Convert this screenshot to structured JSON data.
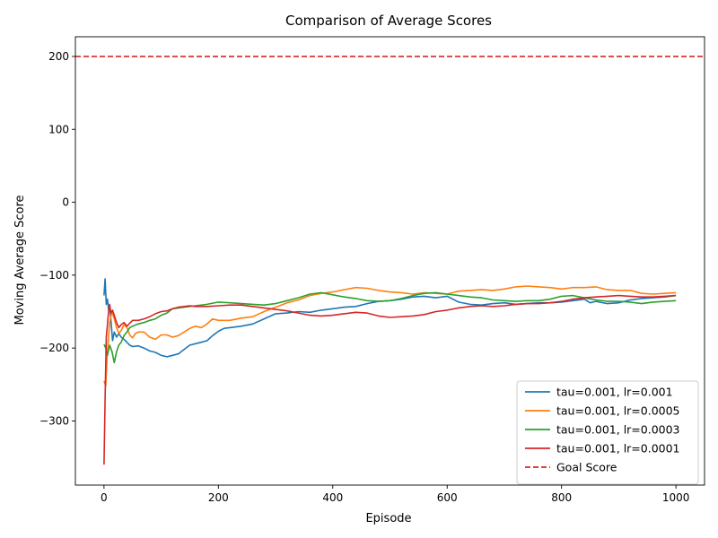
{
  "chart_data": {
    "type": "line",
    "title": "Comparison of Average Scores",
    "xlabel": "Episode",
    "ylabel": "Moving Average Score",
    "xlim": [
      -50,
      1050
    ],
    "ylim": [
      -388,
      227
    ],
    "xticks": [
      0,
      200,
      400,
      600,
      800,
      1000
    ],
    "yticks": [
      -300,
      -200,
      -100,
      0,
      100,
      200
    ],
    "grid": false,
    "legend_position": "lower-right",
    "goal": {
      "name": "Goal Score",
      "value": 200,
      "color": "#d62728",
      "style": "dashed"
    },
    "series": [
      {
        "name": "tau=0.001, lr=0.001",
        "color": "#1f77b4",
        "points": [
          [
            0,
            -128
          ],
          [
            2,
            -105
          ],
          [
            4,
            -140
          ],
          [
            6,
            -133
          ],
          [
            8,
            -148
          ],
          [
            10,
            -142
          ],
          [
            12,
            -160
          ],
          [
            15,
            -190
          ],
          [
            18,
            -178
          ],
          [
            22,
            -185
          ],
          [
            26,
            -180
          ],
          [
            30,
            -185
          ],
          [
            35,
            -188
          ],
          [
            40,
            -192
          ],
          [
            45,
            -196
          ],
          [
            50,
            -198
          ],
          [
            60,
            -197
          ],
          [
            70,
            -200
          ],
          [
            80,
            -204
          ],
          [
            90,
            -206
          ],
          [
            100,
            -210
          ],
          [
            110,
            -212
          ],
          [
            120,
            -210
          ],
          [
            130,
            -208
          ],
          [
            140,
            -202
          ],
          [
            150,
            -196
          ],
          [
            160,
            -194
          ],
          [
            170,
            -192
          ],
          [
            180,
            -190
          ],
          [
            190,
            -183
          ],
          [
            200,
            -177
          ],
          [
            210,
            -173
          ],
          [
            220,
            -172
          ],
          [
            240,
            -170
          ],
          [
            260,
            -167
          ],
          [
            280,
            -160
          ],
          [
            300,
            -153
          ],
          [
            320,
            -152
          ],
          [
            340,
            -150
          ],
          [
            360,
            -151
          ],
          [
            380,
            -148
          ],
          [
            400,
            -146
          ],
          [
            420,
            -144
          ],
          [
            440,
            -143
          ],
          [
            460,
            -139
          ],
          [
            480,
            -136
          ],
          [
            500,
            -135
          ],
          [
            520,
            -133
          ],
          [
            540,
            -130
          ],
          [
            560,
            -129
          ],
          [
            580,
            -131
          ],
          [
            600,
            -129
          ],
          [
            620,
            -137
          ],
          [
            640,
            -140
          ],
          [
            660,
            -141
          ],
          [
            680,
            -139
          ],
          [
            700,
            -138
          ],
          [
            720,
            -140
          ],
          [
            740,
            -139
          ],
          [
            760,
            -138
          ],
          [
            780,
            -138
          ],
          [
            800,
            -137
          ],
          [
            820,
            -135
          ],
          [
            840,
            -133
          ],
          [
            850,
            -138
          ],
          [
            860,
            -136
          ],
          [
            880,
            -139
          ],
          [
            900,
            -138
          ],
          [
            920,
            -134
          ],
          [
            940,
            -132
          ],
          [
            960,
            -131
          ],
          [
            980,
            -130
          ],
          [
            1000,
            -128
          ]
        ]
      },
      {
        "name": "tau=0.001, lr=0.0005",
        "color": "#ff7f0e",
        "points": [
          [
            0,
            -245
          ],
          [
            3,
            -252
          ],
          [
            6,
            -205
          ],
          [
            10,
            -165
          ],
          [
            14,
            -150
          ],
          [
            18,
            -160
          ],
          [
            22,
            -172
          ],
          [
            26,
            -180
          ],
          [
            30,
            -176
          ],
          [
            35,
            -168
          ],
          [
            40,
            -172
          ],
          [
            45,
            -182
          ],
          [
            50,
            -186
          ],
          [
            55,
            -180
          ],
          [
            60,
            -178
          ],
          [
            70,
            -178
          ],
          [
            80,
            -185
          ],
          [
            90,
            -188
          ],
          [
            100,
            -182
          ],
          [
            110,
            -182
          ],
          [
            120,
            -185
          ],
          [
            130,
            -183
          ],
          [
            140,
            -178
          ],
          [
            150,
            -173
          ],
          [
            160,
            -170
          ],
          [
            170,
            -172
          ],
          [
            180,
            -167
          ],
          [
            190,
            -160
          ],
          [
            200,
            -162
          ],
          [
            220,
            -162
          ],
          [
            240,
            -159
          ],
          [
            260,
            -157
          ],
          [
            280,
            -150
          ],
          [
            300,
            -144
          ],
          [
            320,
            -138
          ],
          [
            340,
            -134
          ],
          [
            360,
            -128
          ],
          [
            380,
            -125
          ],
          [
            400,
            -123
          ],
          [
            420,
            -120
          ],
          [
            440,
            -117
          ],
          [
            460,
            -118
          ],
          [
            480,
            -121
          ],
          [
            500,
            -123
          ],
          [
            520,
            -124
          ],
          [
            540,
            -126
          ],
          [
            560,
            -124
          ],
          [
            580,
            -125
          ],
          [
            600,
            -126
          ],
          [
            620,
            -122
          ],
          [
            640,
            -121
          ],
          [
            660,
            -120
          ],
          [
            680,
            -121
          ],
          [
            700,
            -119
          ],
          [
            720,
            -116
          ],
          [
            740,
            -115
          ],
          [
            760,
            -116
          ],
          [
            780,
            -117
          ],
          [
            800,
            -119
          ],
          [
            820,
            -117
          ],
          [
            840,
            -117
          ],
          [
            860,
            -116
          ],
          [
            880,
            -120
          ],
          [
            900,
            -121
          ],
          [
            920,
            -121
          ],
          [
            940,
            -125
          ],
          [
            960,
            -126
          ],
          [
            980,
            -125
          ],
          [
            1000,
            -124
          ]
        ]
      },
      {
        "name": "tau=0.001, lr=0.0003",
        "color": "#2ca02c",
        "points": [
          [
            0,
            -195
          ],
          [
            3,
            -200
          ],
          [
            6,
            -210
          ],
          [
            10,
            -196
          ],
          [
            14,
            -205
          ],
          [
            18,
            -220
          ],
          [
            22,
            -205
          ],
          [
            26,
            -196
          ],
          [
            30,
            -192
          ],
          [
            35,
            -183
          ],
          [
            40,
            -178
          ],
          [
            45,
            -172
          ],
          [
            50,
            -170
          ],
          [
            60,
            -167
          ],
          [
            70,
            -165
          ],
          [
            80,
            -162
          ],
          [
            90,
            -160
          ],
          [
            100,
            -155
          ],
          [
            110,
            -152
          ],
          [
            120,
            -146
          ],
          [
            130,
            -145
          ],
          [
            140,
            -144
          ],
          [
            160,
            -142
          ],
          [
            180,
            -140
          ],
          [
            200,
            -137
          ],
          [
            220,
            -138
          ],
          [
            240,
            -139
          ],
          [
            260,
            -140
          ],
          [
            280,
            -141
          ],
          [
            300,
            -139
          ],
          [
            320,
            -135
          ],
          [
            340,
            -131
          ],
          [
            360,
            -126
          ],
          [
            380,
            -124
          ],
          [
            400,
            -127
          ],
          [
            420,
            -130
          ],
          [
            440,
            -132
          ],
          [
            460,
            -135
          ],
          [
            480,
            -136
          ],
          [
            500,
            -135
          ],
          [
            520,
            -132
          ],
          [
            540,
            -128
          ],
          [
            560,
            -125
          ],
          [
            580,
            -124
          ],
          [
            600,
            -126
          ],
          [
            620,
            -128
          ],
          [
            640,
            -130
          ],
          [
            660,
            -131
          ],
          [
            680,
            -134
          ],
          [
            700,
            -135
          ],
          [
            720,
            -136
          ],
          [
            740,
            -135
          ],
          [
            760,
            -135
          ],
          [
            780,
            -133
          ],
          [
            800,
            -129
          ],
          [
            820,
            -128
          ],
          [
            840,
            -131
          ],
          [
            860,
            -134
          ],
          [
            880,
            -136
          ],
          [
            900,
            -136
          ],
          [
            920,
            -137
          ],
          [
            940,
            -139
          ],
          [
            960,
            -137
          ],
          [
            980,
            -136
          ],
          [
            1000,
            -135
          ]
        ]
      },
      {
        "name": "tau=0.001, lr=0.0001",
        "color": "#d62728",
        "points": [
          [
            0,
            -360
          ],
          [
            2,
            -270
          ],
          [
            4,
            -185
          ],
          [
            6,
            -168
          ],
          [
            8,
            -150
          ],
          [
            10,
            -140
          ],
          [
            12,
            -152
          ],
          [
            15,
            -148
          ],
          [
            18,
            -155
          ],
          [
            22,
            -165
          ],
          [
            26,
            -172
          ],
          [
            30,
            -168
          ],
          [
            35,
            -165
          ],
          [
            40,
            -170
          ],
          [
            45,
            -166
          ],
          [
            50,
            -162
          ],
          [
            60,
            -162
          ],
          [
            70,
            -160
          ],
          [
            80,
            -157
          ],
          [
            90,
            -153
          ],
          [
            100,
            -150
          ],
          [
            110,
            -149
          ],
          [
            120,
            -146
          ],
          [
            130,
            -144
          ],
          [
            140,
            -143
          ],
          [
            150,
            -142
          ],
          [
            160,
            -143
          ],
          [
            180,
            -143
          ],
          [
            200,
            -142
          ],
          [
            220,
            -141
          ],
          [
            240,
            -141
          ],
          [
            260,
            -143
          ],
          [
            280,
            -145
          ],
          [
            300,
            -147
          ],
          [
            320,
            -149
          ],
          [
            340,
            -152
          ],
          [
            360,
            -155
          ],
          [
            380,
            -156
          ],
          [
            400,
            -155
          ],
          [
            420,
            -153
          ],
          [
            440,
            -151
          ],
          [
            460,
            -152
          ],
          [
            480,
            -156
          ],
          [
            500,
            -158
          ],
          [
            520,
            -157
          ],
          [
            540,
            -156
          ],
          [
            560,
            -154
          ],
          [
            580,
            -150
          ],
          [
            600,
            -148
          ],
          [
            620,
            -145
          ],
          [
            640,
            -143
          ],
          [
            660,
            -142
          ],
          [
            680,
            -143
          ],
          [
            700,
            -142
          ],
          [
            720,
            -140
          ],
          [
            740,
            -139
          ],
          [
            760,
            -139
          ],
          [
            780,
            -138
          ],
          [
            800,
            -136
          ],
          [
            820,
            -133
          ],
          [
            840,
            -131
          ],
          [
            860,
            -130
          ],
          [
            880,
            -129
          ],
          [
            900,
            -128
          ],
          [
            920,
            -129
          ],
          [
            940,
            -130
          ],
          [
            960,
            -130
          ],
          [
            980,
            -129
          ],
          [
            1000,
            -128
          ]
        ]
      }
    ]
  }
}
